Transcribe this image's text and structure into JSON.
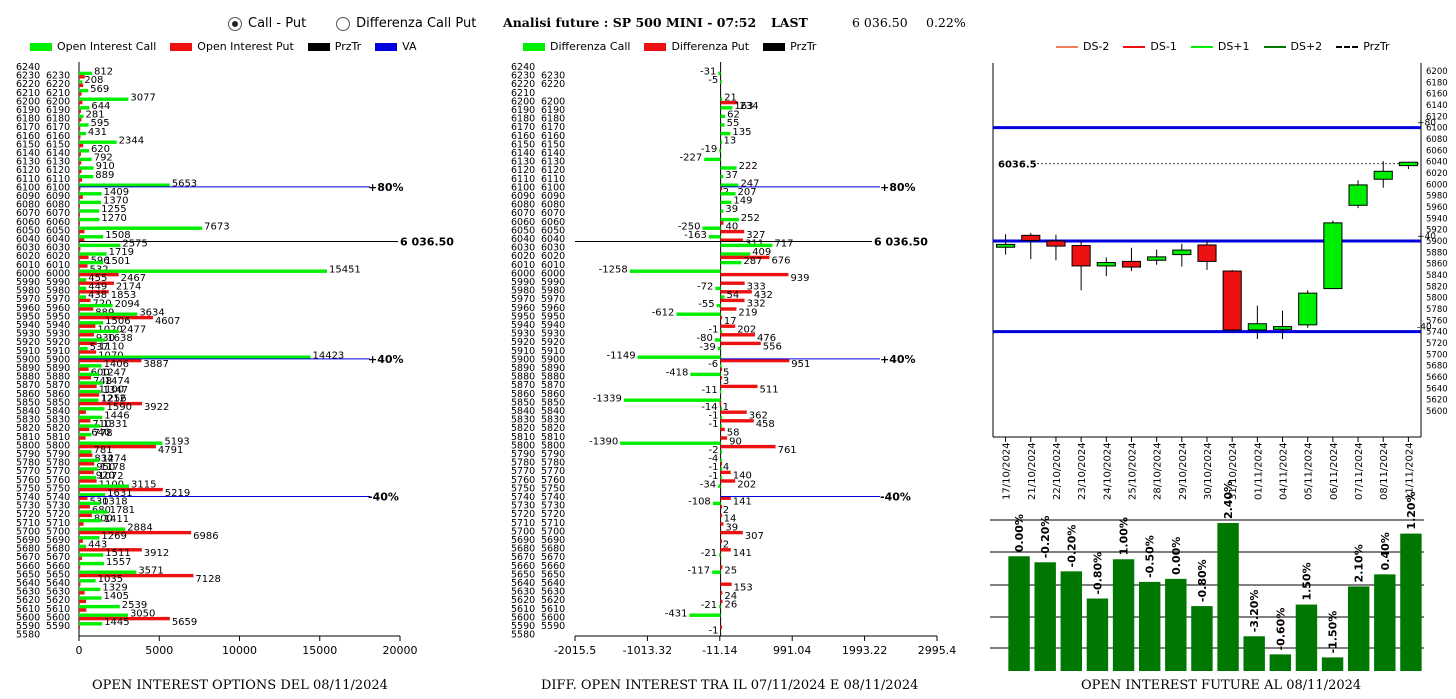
{
  "controls": {
    "radio_call_put": "Call - Put",
    "radio_diff": "Differenza Call Put",
    "selected": "call_put"
  },
  "header": {
    "title": "Analisi future : SP 500 MINI - 07:52",
    "last_label": "LAST",
    "last_value": "6 036.50",
    "change": "0.22%"
  },
  "colors": {
    "green": "#00ee00",
    "red": "#ee1111",
    "black": "#000000",
    "blue": "#0000dd",
    "dark_green": "#007700",
    "orange": "#f08060"
  },
  "footers": {
    "left": "OPEN INTEREST OPTIONS DEL 08/11/2024",
    "mid": "DIFF. OPEN INTEREST TRA IL 07/11/2024 E 08/11/2024",
    "right": "OPEN INTEREST FUTURE AL 08/11/2024"
  },
  "chart_data": [
    {
      "type": "bar",
      "orientation": "horizontal",
      "legend": [
        "Open Interest Call",
        "Open Interest Put",
        "PrzTr",
        "VA"
      ],
      "strikes_axis": [
        6240,
        6230,
        6220,
        6210,
        6200,
        6190,
        6180,
        6170,
        6160,
        6150,
        6140,
        6130,
        6120,
        6110,
        6100,
        6090,
        6080,
        6070,
        6060,
        6050,
        6040,
        6030,
        6020,
        6010,
        6000,
        5990,
        5980,
        5970,
        5960,
        5950,
        5940,
        5930,
        5920,
        5910,
        5900,
        5890,
        5880,
        5870,
        5860,
        5850,
        5840,
        5830,
        5820,
        5810,
        5800,
        5790,
        5780,
        5770,
        5760,
        5750,
        5740,
        5730,
        5720,
        5710,
        5700,
        5690,
        5680,
        5670,
        5660,
        5650,
        5640,
        5630,
        5620,
        5610,
        5600,
        5590,
        5580
      ],
      "labeled_strikes": [
        6230,
        6220,
        6210,
        6200,
        6190,
        6180,
        6170,
        6160,
        6150,
        6140,
        6130,
        6120,
        6110,
        6100,
        6090,
        6080,
        6070,
        6060,
        6050,
        6040,
        6030,
        6020,
        6010,
        6000,
        5990,
        5980,
        5970,
        5960,
        5950,
        5940,
        5930,
        5920,
        5910,
        5900,
        5890,
        5880,
        5870,
        5860,
        5850,
        5840,
        5830,
        5820,
        5810,
        5800,
        5790,
        5780,
        5770,
        5760,
        5750,
        5740,
        5730,
        5720,
        5710,
        5700,
        5690,
        5680,
        5670,
        5660,
        5650,
        5640,
        5630,
        5620,
        5610,
        5600,
        5590
      ],
      "call": [
        812,
        208,
        569,
        3077,
        644,
        281,
        595,
        431,
        2344,
        620,
        792,
        910,
        889,
        5653,
        1409,
        1370,
        1255,
        1270,
        7673,
        1508,
        2575,
        1719,
        1501,
        15451,
        455,
        449,
        438,
        2094,
        3634,
        1506,
        2477,
        1638,
        537,
        14423,
        1406,
        1247,
        1474,
        1347,
        1212,
        1590,
        1446,
        1331,
        778,
        5193,
        781,
        1274,
        1178,
        1072,
        3115,
        1631,
        1318,
        1781,
        1411,
        2884,
        1269,
        443,
        1511,
        1557,
        3571,
        1035,
        1329,
        1405,
        2539,
        3050,
        1445
      ],
      "put": [
        358,
        258,
        160,
        210,
        120,
        150,
        80,
        90,
        260,
        120,
        140,
        160,
        190,
        87,
        240,
        6,
        3,
        40,
        340,
        329,
        88,
        596,
        532,
        2467,
        2174,
        1853,
        720,
        889,
        4607,
        1020,
        930,
        1110,
        1070,
        3887,
        600,
        748,
        1100,
        1256,
        3922,
        430,
        710,
        640,
        410,
        4791,
        834,
        950,
        920,
        1100,
        5219,
        530,
        680,
        800,
        283,
        6986,
        240,
        3912,
        180,
        79,
        7128,
        92,
        350,
        440,
        456,
        5659,
        55
      ],
      "call_labels": {
        "6000": "15451",
        "5900": "14423",
        "6050": "7673"
      },
      "annotations": [
        "+80%",
        "+40%",
        "-40%",
        "6 036.50"
      ],
      "xticks": [
        0,
        5000,
        10000,
        15000,
        20000
      ],
      "xlim": [
        0,
        20000
      ],
      "ylim": [
        5580,
        6240
      ]
    },
    {
      "type": "bar",
      "orientation": "horizontal",
      "legend": [
        "Differenza Call",
        "Differenza Put",
        "PrzTr"
      ],
      "strikes_axis": [
        6240,
        6230,
        6220,
        6210,
        6200,
        6190,
        6180,
        6170,
        6160,
        6150,
        6140,
        6130,
        6120,
        6110,
        6100,
        6090,
        6080,
        6070,
        6060,
        6050,
        6040,
        6030,
        6020,
        6010,
        6000,
        5990,
        5980,
        5970,
        5960,
        5950,
        5940,
        5930,
        5920,
        5910,
        5900,
        5890,
        5880,
        5870,
        5860,
        5850,
        5840,
        5830,
        5820,
        5810,
        5800,
        5790,
        5780,
        5770,
        5760,
        5750,
        5740,
        5730,
        5720,
        5710,
        5700,
        5690,
        5680,
        5670,
        5660,
        5650,
        5640,
        5630,
        5620,
        5610,
        5600,
        5590,
        5580
      ],
      "diff": [
        {
          "strike": 6230,
          "call": -31,
          "put": 0
        },
        {
          "strike": 6220,
          "call": -5,
          "put": 0
        },
        {
          "strike": 6200,
          "call": 21,
          "put": 234
        },
        {
          "strike": 6190,
          "call": 163,
          "put": 0
        },
        {
          "strike": 6180,
          "call": 62,
          "put": 0
        },
        {
          "strike": 6170,
          "call": 55,
          "put": 0
        },
        {
          "strike": 6160,
          "call": 135,
          "put": 0
        },
        {
          "strike": 6150,
          "call": 13,
          "put": 0
        },
        {
          "strike": 6140,
          "call": -19,
          "put": 0
        },
        {
          "strike": 6130,
          "call": -227,
          "put": 0
        },
        {
          "strike": 6120,
          "call": 222,
          "put": 0
        },
        {
          "strike": 6110,
          "call": 37,
          "put": 0
        },
        {
          "strike": 6100,
          "call": 247,
          "put": 2
        },
        {
          "strike": 6090,
          "call": 207,
          "put": 0
        },
        {
          "strike": 6080,
          "call": 149,
          "put": 0
        },
        {
          "strike": 6070,
          "call": 39,
          "put": 0
        },
        {
          "strike": 6060,
          "call": 252,
          "put": 40
        },
        {
          "strike": 6050,
          "call": -250,
          "put": 327
        },
        {
          "strike": 6040,
          "call": -163,
          "put": 311
        },
        {
          "strike": 6030,
          "call": 717,
          "put": 0
        },
        {
          "strike": 6020,
          "call": 409,
          "put": 676
        },
        {
          "strike": 6010,
          "call": 287,
          "put": 0
        },
        {
          "strike": 6000,
          "call": -1258,
          "put": 939
        },
        {
          "strike": 5990,
          "call": 0,
          "put": 333
        },
        {
          "strike": 5980,
          "call": -72,
          "put": 432
        },
        {
          "strike": 5970,
          "call": 54,
          "put": 332
        },
        {
          "strike": 5960,
          "call": -55,
          "put": 219
        },
        {
          "strike": 5950,
          "call": -612,
          "put": 17
        },
        {
          "strike": 5940,
          "call": 0,
          "put": 202
        },
        {
          "strike": 5930,
          "call": -1,
          "put": 476
        },
        {
          "strike": 5920,
          "call": -80,
          "put": 556
        },
        {
          "strike": 5910,
          "call": -39,
          "put": 0
        },
        {
          "strike": 5900,
          "call": -1149,
          "put": 951
        },
        {
          "strike": 5890,
          "call": -6,
          "put": 5
        },
        {
          "strike": 5880,
          "call": -418,
          "put": 3
        },
        {
          "strike": 5870,
          "call": 0,
          "put": 511
        },
        {
          "strike": 5860,
          "call": -11,
          "put": 0
        },
        {
          "strike": 5850,
          "call": -1339,
          "put": -14
        },
        {
          "strike": 5840,
          "call": 1,
          "put": 362
        },
        {
          "strike": 5830,
          "call": -1,
          "put": 458
        },
        {
          "strike": 5820,
          "call": -1,
          "put": 58
        },
        {
          "strike": 5810,
          "call": 0,
          "put": 90
        },
        {
          "strike": 5800,
          "call": -1390,
          "put": 761
        },
        {
          "strike": 5790,
          "call": -2,
          "put": 0
        },
        {
          "strike": 5780,
          "call": -4,
          "put": 4
        },
        {
          "strike": 5770,
          "call": -1,
          "put": 140
        },
        {
          "strike": 5760,
          "call": -1,
          "put": 202
        },
        {
          "strike": 5750,
          "call": -34,
          "put": 0
        },
        {
          "strike": 5740,
          "call": 0,
          "put": 141
        },
        {
          "strike": 5730,
          "call": -108,
          "put": 2
        },
        {
          "strike": 5720,
          "call": 0,
          "put": 14
        },
        {
          "strike": 5710,
          "call": 0,
          "put": 39
        },
        {
          "strike": 5700,
          "call": 0,
          "put": 307
        },
        {
          "strike": 5690,
          "call": 0,
          "put": 2
        },
        {
          "strike": 5680,
          "call": 0,
          "put": 141
        },
        {
          "strike": 5670,
          "call": -21,
          "put": 0
        },
        {
          "strike": 5660,
          "call": 0,
          "put": 25
        },
        {
          "strike": 5650,
          "call": -117,
          "put": 0
        },
        {
          "strike": 5640,
          "call": 0,
          "put": 153
        },
        {
          "strike": 5630,
          "call": 0,
          "put": 24
        },
        {
          "strike": 5620,
          "call": 0,
          "put": 26
        },
        {
          "strike": 5610,
          "call": -21,
          "put": 0
        },
        {
          "strike": 5600,
          "call": -431,
          "put": 0
        },
        {
          "strike": 5590,
          "call": 0,
          "put": -1
        }
      ],
      "annotations": [
        "+80%",
        "+40%",
        "-40%",
        "6 036.50"
      ],
      "xticks": [
        "-2015.5",
        "-1013.32",
        "-11.14",
        "991.04",
        "1993.22",
        "2995.4"
      ],
      "xlim": [
        -2015.5,
        2995.4
      ]
    },
    {
      "type": "candlestick",
      "legend": [
        "DS-2",
        "DS-1",
        "DS+1",
        "DS+2",
        "PrzTr"
      ],
      "dates": [
        "17/10/2024",
        "21/10/2024",
        "22/10/2024",
        "23/10/2024",
        "24/10/2024",
        "25/10/2024",
        "28/10/2024",
        "29/10/2024",
        "30/10/2024",
        "31/10/2024",
        "01/11/2024",
        "04/11/2024",
        "05/11/2024",
        "06/11/2024",
        "07/11/2024",
        "08/11/2024",
        "11/11/2024"
      ],
      "candles": [
        {
          "o": 5889,
          "h": 5912,
          "l": 5876,
          "c": 5894
        },
        {
          "o": 5910,
          "h": 5914,
          "l": 5868,
          "c": 5901
        },
        {
          "o": 5900,
          "h": 5911,
          "l": 5866,
          "c": 5891
        },
        {
          "o": 5892,
          "h": 5901,
          "l": 5813,
          "c": 5856
        },
        {
          "o": 5856,
          "h": 5871,
          "l": 5838,
          "c": 5862
        },
        {
          "o": 5864,
          "h": 5888,
          "l": 5847,
          "c": 5854
        },
        {
          "o": 5866,
          "h": 5885,
          "l": 5858,
          "c": 5872
        },
        {
          "o": 5876,
          "h": 5895,
          "l": 5855,
          "c": 5884
        },
        {
          "o": 5893,
          "h": 5901,
          "l": 5849,
          "c": 5864
        },
        {
          "o": 5847,
          "h": 5849,
          "l": 5739,
          "c": 5743
        },
        {
          "o": 5743,
          "h": 5786,
          "l": 5727,
          "c": 5754
        },
        {
          "o": 5744,
          "h": 5777,
          "l": 5727,
          "c": 5749
        },
        {
          "o": 5752,
          "h": 5813,
          "l": 5747,
          "c": 5808
        },
        {
          "o": 5816,
          "h": 5936,
          "l": 5815,
          "c": 5932
        },
        {
          "o": 5963,
          "h": 6007,
          "l": 5958,
          "c": 5999
        },
        {
          "o": 6009,
          "h": 6041,
          "l": 5994,
          "c": 6023
        },
        {
          "o": 6033,
          "h": 6040,
          "l": 6027,
          "c": 6039
        }
      ],
      "levels": [
        {
          "label": "+80",
          "value": 6100
        },
        {
          "label": "+40",
          "value": 5900
        },
        {
          "label": "-40",
          "value": 5740
        }
      ],
      "last_label": "6036.5",
      "last_value": 6036.5,
      "yticks": [
        6200,
        6180,
        6160,
        6140,
        6120,
        6100,
        6080,
        6060,
        6040,
        6020,
        6000,
        5980,
        5960,
        5940,
        5920,
        5900,
        5880,
        5860,
        5840,
        5820,
        5800,
        5780,
        5760,
        5740,
        5720,
        5700,
        5680,
        5660,
        5640,
        5620,
        5600
      ],
      "ylim": [
        5600,
        6200
      ]
    },
    {
      "type": "bar",
      "values_pct": [
        0.0,
        -0.2,
        -0.2,
        -0.8,
        1.0,
        -0.5,
        0.0,
        -0.8,
        2.4,
        -3.2,
        -0.6,
        1.5,
        -1.5,
        2.1,
        0.4,
        1.2
      ],
      "labels": [
        "0.00%",
        "-0.20%",
        "-0.20%",
        "-0.80%",
        "1.00%",
        "-0.50%",
        "0.00%",
        "-0.80%",
        "2.40%",
        "-3.20%",
        "-0.60%",
        "1.50%",
        "-1.50%",
        "2.10%",
        "0.40%",
        "1.20%"
      ],
      "heights": [
        0.76,
        0.72,
        0.66,
        0.48,
        0.74,
        0.59,
        0.61,
        0.43,
        0.98,
        0.23,
        0.11,
        0.44,
        0.09,
        0.56,
        0.64,
        0.91
      ]
    }
  ]
}
